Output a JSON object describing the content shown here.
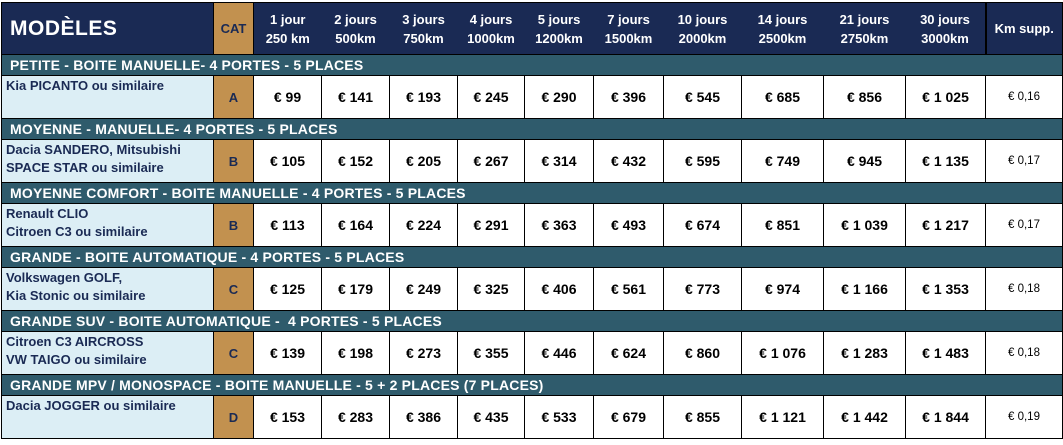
{
  "colors": {
    "header_navy": "#1a2a54",
    "section_teal": "#2f5b6c",
    "category_gold": "#c2914f",
    "model_lightblue": "#dceef5",
    "border_black": "#000000",
    "text_white": "#ffffff"
  },
  "table": {
    "title_header": "MODÈLES",
    "cat_header": "CAT",
    "km_supp_header": "Km supp.",
    "day_columns": [
      {
        "days": "1 jour",
        "km": "250 km"
      },
      {
        "days": "2 jours",
        "km": "500km"
      },
      {
        "days": "3 jours",
        "km": "750km"
      },
      {
        "days": "4 jours",
        "km": "1000km"
      },
      {
        "days": "5 jours",
        "km": "1200km"
      },
      {
        "days": "7 jours",
        "km": "1500km"
      },
      {
        "days": "10 jours",
        "km": "2000km"
      },
      {
        "days": "14 jours",
        "km": "2500km"
      },
      {
        "days": "21 jours",
        "km": "2750km"
      },
      {
        "days": "30 jours",
        "km": "3000km"
      }
    ],
    "sections": [
      {
        "title": "PETITE - BOITE MANUELLE- 4 PORTES - 5 PLACES",
        "rows": [
          {
            "model_lines": [
              "Kia PICANTO ou similaire"
            ],
            "cat": "A",
            "prices": [
              "€ 99",
              "€ 141",
              "€ 193",
              "€ 245",
              "€ 290",
              "€ 396",
              "€ 545",
              "€ 685",
              "€ 856",
              "€ 1 025"
            ],
            "km_supp": "€ 0,16"
          }
        ]
      },
      {
        "title": "MOYENNE - MANUELLE- 4 PORTES - 5 PLACES",
        "rows": [
          {
            "model_lines": [
              "Dacia SANDERO, Mitsubishi",
              "SPACE STAR ou similaire"
            ],
            "cat": "B",
            "prices": [
              "€ 105",
              "€ 152",
              "€ 205",
              "€ 267",
              "€ 314",
              "€ 432",
              "€ 595",
              "€ 749",
              "€ 945",
              "€ 1 135"
            ],
            "km_supp": "€ 0,17"
          }
        ]
      },
      {
        "title": "MOYENNE COMFORT - BOITE MANUELLE - 4 PORTES - 5 PLACES",
        "rows": [
          {
            "model_lines": [
              "Renault CLIO",
              "Citroen C3 ou similaire"
            ],
            "cat": "B",
            "prices": [
              "€ 113",
              "€ 164",
              "€ 224",
              "€ 291",
              "€ 363",
              "€ 493",
              "€ 674",
              "€ 851",
              "€ 1 039",
              "€ 1 217"
            ],
            "km_supp": "€ 0,17"
          }
        ]
      },
      {
        "title": "GRANDE - BOITE AUTOMATIQUE - 4 PORTES - 5 PLACES",
        "rows": [
          {
            "model_lines": [
              "Volkswagen GOLF,",
              "Kia Stonic ou similaire"
            ],
            "cat": "C",
            "prices": [
              "€ 125",
              "€ 179",
              "€ 249",
              "€ 325",
              "€ 406",
              "€ 561",
              "€ 773",
              "€ 974",
              "€ 1 166",
              "€ 1 353"
            ],
            "km_supp": "€ 0,18"
          }
        ]
      },
      {
        "title": "GRANDE SUV - BOITE AUTOMATIQUE -  4 PORTES - 5 PLACES",
        "rows": [
          {
            "model_lines": [
              "Citroen C3 AIRCROSS",
              "VW TAIGO ou similaire"
            ],
            "cat": "C",
            "prices": [
              "€ 139",
              "€ 198",
              "€ 273",
              "€ 355",
              "€ 446",
              "€ 624",
              "€ 860",
              "€ 1 076",
              "€ 1 283",
              "€ 1 483"
            ],
            "km_supp": "€ 0,18"
          }
        ]
      },
      {
        "title": "GRANDE MPV / MONOSPACE - BOITE MANUELLE - 5 + 2 PLACES (7 PLACES)",
        "rows": [
          {
            "model_lines": [
              "Dacia JOGGER ou similaire"
            ],
            "cat": "D",
            "prices": [
              "€ 153",
              "€ 283",
              "€ 386",
              "€ 435",
              "€ 533",
              "€ 679",
              "€ 855",
              "€ 1 121",
              "€ 1 442",
              "€ 1 844"
            ],
            "km_supp": "€ 0,19"
          }
        ]
      }
    ]
  }
}
